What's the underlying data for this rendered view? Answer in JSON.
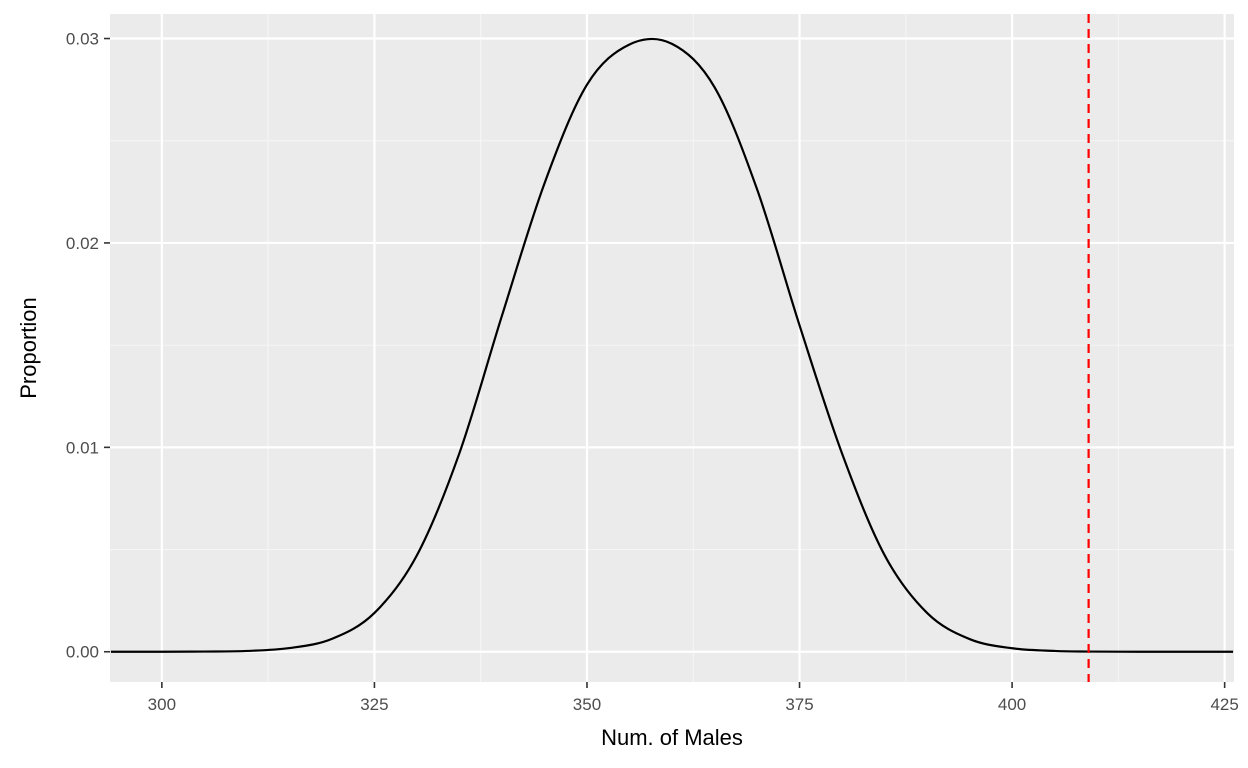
{
  "chart_data": {
    "type": "line",
    "title": "",
    "xlabel": "Num. of Males",
    "ylabel": "Proportion",
    "xlim": [
      293.9,
      426.1
    ],
    "ylim": [
      -0.00148,
      0.0312
    ],
    "x_ticks": [
      300,
      325,
      350,
      375,
      400,
      425
    ],
    "x_tick_labels": [
      "300",
      "325",
      "350",
      "375",
      "400",
      "425"
    ],
    "y_ticks": [
      0,
      0.01,
      0.02,
      0.03
    ],
    "y_tick_labels": [
      "0.00",
      "0.01",
      "0.02",
      "0.03"
    ],
    "grid": true,
    "legend": "none",
    "series": [
      {
        "x": [
          294,
          300,
          305,
          310,
          315,
          320,
          325,
          330,
          335,
          340,
          345,
          350,
          355,
          360,
          365,
          370,
          375,
          380,
          385,
          390,
          395,
          400,
          405,
          409,
          415,
          420,
          426
        ],
        "y": [
          0.0,
          0.0,
          1e-05,
          4e-05,
          0.00018,
          0.00063,
          0.0019,
          0.00472,
          0.00972,
          0.01644,
          0.02291,
          0.02774,
          0.02971,
          0.02974,
          0.02762,
          0.02263,
          0.01597,
          0.0097,
          0.00473,
          0.0019,
          0.00062,
          0.00017,
          4e-05,
          1e-05,
          0.0,
          0.0,
          0.0
        ],
        "color": "#000000"
      }
    ],
    "annotations": [
      {
        "type": "vline",
        "x": 409,
        "color": "#ff0000",
        "style": "dashed"
      }
    ],
    "colors": {
      "panel_background": "#ebebeb",
      "grid_major": "#ffffff",
      "grid_minor": "#f5f5f5",
      "tick_label": "#4d4d4d",
      "axis_title": "#000000"
    }
  }
}
